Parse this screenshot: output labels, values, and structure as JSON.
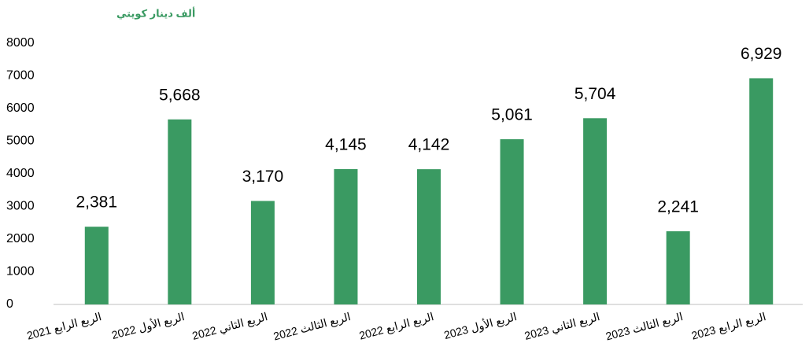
{
  "chart_data": {
    "type": "bar",
    "title": "ألف دينار كويتي",
    "categories": [
      "الربع الرابع 2021",
      "الربع الأول 2022",
      "الربع الثاني 2022",
      "الربع الثالث 2022",
      "الربع الرابع 2022",
      "الربع الأول 2023",
      "الربع الثاني 2023",
      "الربع الثالث 2023",
      "الربع الرابع 2023"
    ],
    "values": [
      2381,
      5668,
      3170,
      4145,
      4142,
      5061,
      5704,
      2241,
      6929
    ],
    "value_labels": [
      "2,381",
      "5,668",
      "3,170",
      "4,145",
      "4,142",
      "5,061",
      "5,704",
      "2,241",
      "6,929"
    ],
    "color": "#3a9a62",
    "ylim": [
      0,
      8000
    ],
    "yticks": [
      0,
      1000,
      2000,
      3000,
      4000,
      5000,
      6000,
      7000,
      8000
    ],
    "grid": false
  }
}
